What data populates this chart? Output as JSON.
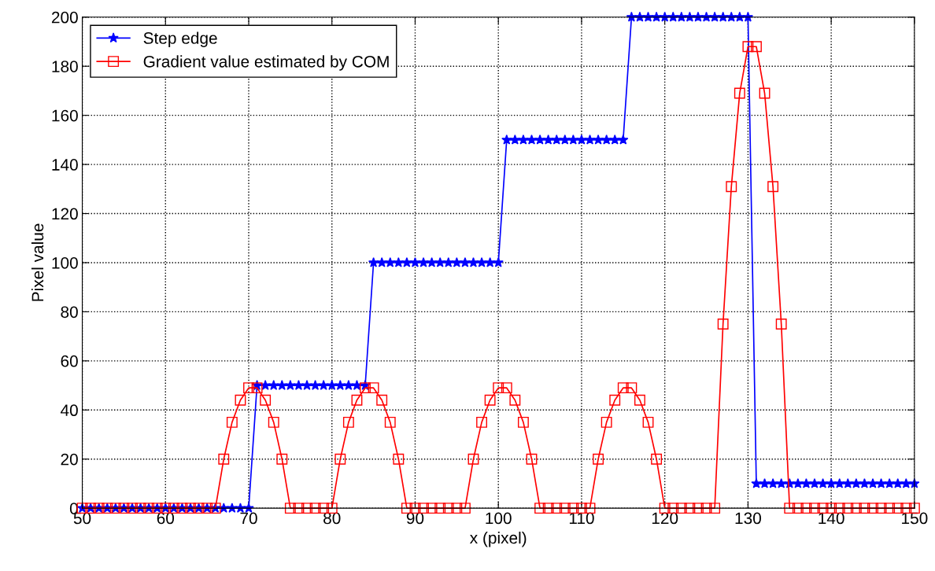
{
  "chart_data": {
    "type": "line",
    "xlabel": "x (pixel)",
    "ylabel": "Pixel value",
    "x": [
      50,
      51,
      52,
      53,
      54,
      55,
      56,
      57,
      58,
      59,
      60,
      61,
      62,
      63,
      64,
      65,
      66,
      67,
      68,
      69,
      70,
      71,
      72,
      73,
      74,
      75,
      76,
      77,
      78,
      79,
      80,
      81,
      82,
      83,
      84,
      85,
      86,
      87,
      88,
      89,
      90,
      91,
      92,
      93,
      94,
      95,
      96,
      97,
      98,
      99,
      100,
      101,
      102,
      103,
      104,
      105,
      106,
      107,
      108,
      109,
      110,
      111,
      112,
      113,
      114,
      115,
      116,
      117,
      118,
      119,
      120,
      121,
      122,
      123,
      124,
      125,
      126,
      127,
      128,
      129,
      130,
      131,
      132,
      133,
      134,
      135,
      136,
      137,
      138,
      139,
      140,
      141,
      142,
      143,
      144,
      145,
      146,
      147,
      148,
      149,
      150
    ],
    "series": [
      {
        "name": "Step edge",
        "color": "#0000ff",
        "marker": "star",
        "values": [
          0,
          0,
          0,
          0,
          0,
          0,
          0,
          0,
          0,
          0,
          0,
          0,
          0,
          0,
          0,
          0,
          0,
          0,
          0,
          0,
          0,
          50,
          50,
          50,
          50,
          50,
          50,
          50,
          50,
          50,
          50,
          50,
          50,
          50,
          50,
          100,
          100,
          100,
          100,
          100,
          100,
          100,
          100,
          100,
          100,
          100,
          100,
          100,
          100,
          100,
          100,
          150,
          150,
          150,
          150,
          150,
          150,
          150,
          150,
          150,
          150,
          150,
          150,
          150,
          150,
          150,
          200,
          200,
          200,
          200,
          200,
          200,
          200,
          200,
          200,
          200,
          200,
          200,
          200,
          200,
          200,
          10,
          10,
          10,
          10,
          10,
          10,
          10,
          10,
          10,
          10,
          10,
          10,
          10,
          10,
          10,
          10,
          10,
          10,
          10,
          10
        ]
      },
      {
        "name": "Gradient value estimated by COM",
        "color": "#ff0000",
        "marker": "square",
        "values": [
          0,
          0,
          0,
          0,
          0,
          0,
          0,
          0,
          0,
          0,
          0,
          0,
          0,
          0,
          0,
          0,
          0,
          20,
          35,
          44,
          49,
          49,
          44,
          35,
          20,
          0,
          0,
          0,
          0,
          0,
          0,
          20,
          35,
          44,
          49,
          49,
          44,
          35,
          20,
          0,
          0,
          0,
          0,
          0,
          0,
          0,
          0,
          20,
          35,
          44,
          49,
          49,
          44,
          35,
          20,
          0,
          0,
          0,
          0,
          0,
          0,
          0,
          20,
          35,
          44,
          49,
          49,
          44,
          35,
          20,
          0,
          0,
          0,
          0,
          0,
          0,
          0,
          75,
          131,
          169,
          188,
          188,
          169,
          131,
          75,
          0,
          0,
          0,
          0,
          0,
          0,
          0,
          0,
          0,
          0,
          0,
          0,
          0,
          0,
          0,
          0
        ]
      }
    ],
    "xlim": [
      50,
      150
    ],
    "xticks": [
      50,
      60,
      70,
      80,
      90,
      100,
      110,
      120,
      130,
      140,
      150
    ],
    "ylim": [
      0,
      200
    ],
    "yticks": [
      0,
      20,
      40,
      60,
      80,
      100,
      120,
      140,
      160,
      180,
      200
    ],
    "grid": true,
    "legend": "top left",
    "line_style": "solid"
  }
}
